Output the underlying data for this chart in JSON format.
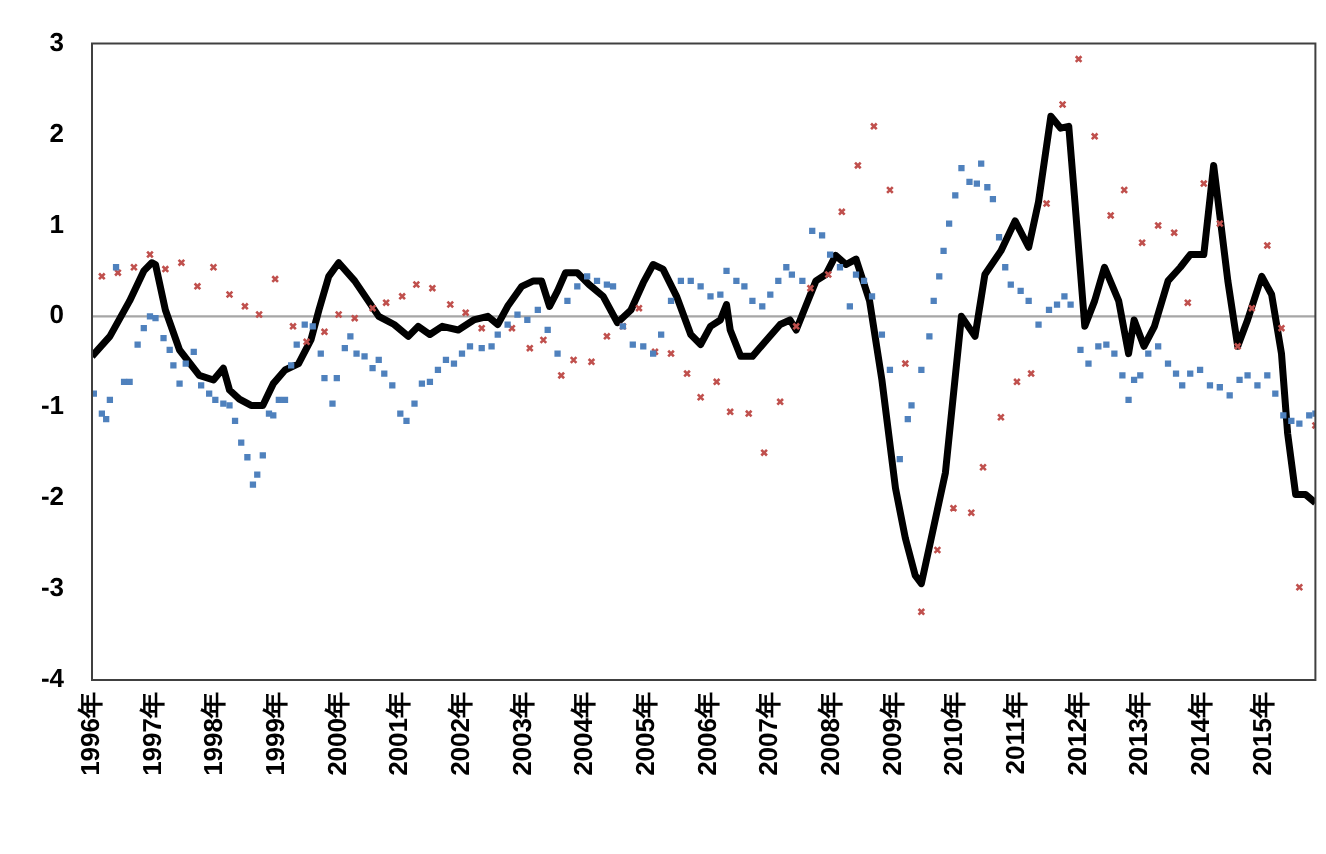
{
  "chart_data": {
    "type": "line",
    "xlim": [
      1996,
      2015.84
    ],
    "ylim": [
      -4,
      3
    ],
    "xticks": [
      {
        "value": 1996,
        "label": "1996年"
      },
      {
        "value": 1997,
        "label": "1997年"
      },
      {
        "value": 1998,
        "label": "1998年"
      },
      {
        "value": 1999,
        "label": "1999年"
      },
      {
        "value": 2000,
        "label": "2000年"
      },
      {
        "value": 2001,
        "label": "2001年"
      },
      {
        "value": 2002,
        "label": "2002年"
      },
      {
        "value": 2003,
        "label": "2003年"
      },
      {
        "value": 2004,
        "label": "2004年"
      },
      {
        "value": 2005,
        "label": "2005年"
      },
      {
        "value": 2006,
        "label": "2006年"
      },
      {
        "value": 2007,
        "label": "2007年"
      },
      {
        "value": 2008,
        "label": "2008年"
      },
      {
        "value": 2009,
        "label": "2009年"
      },
      {
        "value": 2010,
        "label": "2010年"
      },
      {
        "value": 2011,
        "label": "2011年"
      },
      {
        "value": 2012,
        "label": "2012年"
      },
      {
        "value": 2013,
        "label": "2013年"
      },
      {
        "value": 2014,
        "label": "2014年"
      },
      {
        "value": 2015,
        "label": "2015年"
      }
    ],
    "yticks": [
      -4,
      -3,
      -2,
      -1,
      0,
      1,
      2,
      3
    ],
    "grid": false,
    "legend": false,
    "ref_lines": [
      {
        "axis": "y",
        "value": 0,
        "color": "#a6a6a6"
      }
    ],
    "series": [
      {
        "type": "scatter",
        "marker": "square",
        "color": "#4f81bd",
        "x": [
          1996.03,
          1996.16,
          1996.23,
          1996.29,
          1996.39,
          1996.52,
          1996.61,
          1996.74,
          1996.84,
          1996.94,
          1997.03,
          1997.16,
          1997.26,
          1997.32,
          1997.42,
          1997.52,
          1997.65,
          1997.77,
          1997.9,
          1998,
          1998.13,
          1998.23,
          1998.32,
          1998.42,
          1998.52,
          1998.61,
          1998.68,
          1998.77,
          1998.87,
          1998.94,
          1999.03,
          1999.13,
          1999.23,
          1999.32,
          1999.45,
          1999.58,
          1999.71,
          1999.77,
          1999.9,
          1999.97,
          2000.1,
          2000.19,
          2000.29,
          2000.42,
          2000.55,
          2000.65,
          2000.74,
          2000.87,
          2001,
          2001.1,
          2001.23,
          2001.35,
          2001.48,
          2001.61,
          2001.74,
          2001.87,
          2002,
          2002.13,
          2002.32,
          2002.48,
          2002.58,
          2002.74,
          2002.9,
          2003.06,
          2003.23,
          2003.39,
          2003.55,
          2003.71,
          2003.87,
          2004.03,
          2004.19,
          2004.35,
          2004.45,
          2004.61,
          2004.77,
          2004.94,
          2005.1,
          2005.23,
          2005.39,
          2005.55,
          2005.71,
          2005.87,
          2006.03,
          2006.19,
          2006.29,
          2006.45,
          2006.58,
          2006.71,
          2006.87,
          2007,
          2007.13,
          2007.26,
          2007.35,
          2007.52,
          2007.68,
          2007.84,
          2007.97,
          2008.13,
          2008.29,
          2008.39,
          2008.52,
          2008.65,
          2008.81,
          2008.94,
          2009.1,
          2009.23,
          2009.29,
          2009.45,
          2009.58,
          2009.65,
          2009.74,
          2009.81,
          2009.9,
          2010,
          2010.1,
          2010.23,
          2010.35,
          2010.42,
          2010.52,
          2010.61,
          2010.71,
          2010.81,
          2010.9,
          2011.06,
          2011.19,
          2011.35,
          2011.52,
          2011.65,
          2011.77,
          2011.87,
          2012.03,
          2012.16,
          2012.32,
          2012.45,
          2012.58,
          2012.71,
          2012.81,
          2012.9,
          2013,
          2013.13,
          2013.29,
          2013.45,
          2013.58,
          2013.68,
          2013.81,
          2013.97,
          2014.13,
          2014.29,
          2014.45,
          2014.61,
          2014.74,
          2014.9,
          2015.06,
          2015.19,
          2015.32,
          2015.45,
          2015.58,
          2015.74,
          2015.84
        ],
        "values": [
          -0.85,
          -1.07,
          -1.13,
          -0.92,
          0.54,
          -0.72,
          -0.72,
          -0.31,
          -0.13,
          0,
          -0.02,
          -0.24,
          -0.37,
          -0.54,
          -0.74,
          -0.52,
          -0.39,
          -0.76,
          -0.85,
          -0.92,
          -0.96,
          -0.98,
          -1.15,
          -1.39,
          -1.55,
          -1.85,
          -1.74,
          -1.53,
          -1.07,
          -1.09,
          -0.92,
          -0.92,
          -0.54,
          -0.31,
          -0.09,
          -0.11,
          -0.41,
          -0.68,
          -0.96,
          -0.68,
          -0.35,
          -0.22,
          -0.41,
          -0.44,
          -0.57,
          -0.48,
          -0.63,
          -0.76,
          -1.07,
          -1.15,
          -0.96,
          -0.74,
          -0.72,
          -0.59,
          -0.48,
          -0.52,
          -0.41,
          -0.33,
          -0.35,
          -0.33,
          -0.2,
          -0.09,
          0.02,
          -0.04,
          0.07,
          -0.15,
          -0.41,
          0.17,
          0.33,
          0.44,
          0.39,
          0.35,
          0.33,
          -0.11,
          -0.31,
          -0.33,
          -0.41,
          -0.2,
          0.17,
          0.39,
          0.39,
          0.33,
          0.22,
          0.24,
          0.5,
          0.39,
          0.33,
          0.17,
          0.11,
          0.24,
          0.39,
          0.54,
          0.46,
          0.39,
          0.94,
          0.89,
          0.68,
          0.54,
          0.11,
          0.46,
          0.39,
          0.22,
          -0.2,
          -0.59,
          -1.57,
          -1.13,
          -0.98,
          -0.59,
          -0.22,
          0.17,
          0.44,
          0.72,
          1.02,
          1.33,
          1.63,
          1.48,
          1.46,
          1.68,
          1.42,
          1.29,
          0.87,
          0.54,
          0.35,
          0.28,
          0.17,
          -0.09,
          0.07,
          0.13,
          0.22,
          0.13,
          -0.37,
          -0.52,
          -0.33,
          -0.31,
          -0.41,
          -0.65,
          -0.92,
          -0.7,
          -0.65,
          -0.41,
          -0.33,
          -0.52,
          -0.63,
          -0.76,
          -0.63,
          -0.59,
          -0.76,
          -0.78,
          -0.87,
          -0.7,
          -0.65,
          -0.76,
          -0.65,
          -0.85,
          -1.09,
          -1.15,
          -1.18,
          -1.09,
          -1.07
        ]
      },
      {
        "type": "scatter",
        "marker": "cross",
        "color": "#c0504d",
        "x": [
          1996.16,
          1996.42,
          1996.68,
          1996.94,
          1997.19,
          1997.45,
          1997.71,
          1997.97,
          1998.23,
          1998.48,
          1998.71,
          1998.97,
          1999.26,
          1999.48,
          1999.77,
          2000,
          2000.26,
          2000.55,
          2000.77,
          2001.03,
          2001.26,
          2001.52,
          2001.81,
          2002.06,
          2002.32,
          2002.81,
          2003.1,
          2003.32,
          2003.61,
          2003.81,
          2004.1,
          2004.35,
          2004.61,
          2004.87,
          2005.13,
          2005.39,
          2005.65,
          2005.87,
          2006.13,
          2006.35,
          2006.65,
          2006.9,
          2007.16,
          2007.42,
          2007.65,
          2007.94,
          2008.16,
          2008.42,
          2008.68,
          2008.94,
          2009.19,
          2009.45,
          2009.71,
          2009.97,
          2010.26,
          2010.45,
          2010.74,
          2011,
          2011.23,
          2011.48,
          2011.74,
          2012,
          2012.26,
          2012.52,
          2012.74,
          2013.03,
          2013.29,
          2013.55,
          2013.77,
          2014.03,
          2014.29,
          2014.58,
          2014.81,
          2015.06,
          2015.29,
          2015.58,
          2015.84
        ],
        "values": [
          0.44,
          0.48,
          0.54,
          0.68,
          0.52,
          0.59,
          0.33,
          0.54,
          0.24,
          0.11,
          0.02,
          0.41,
          -0.11,
          -0.28,
          -0.17,
          0.02,
          -0.02,
          0.09,
          0.15,
          0.22,
          0.35,
          0.31,
          0.13,
          0.04,
          -0.13,
          -0.13,
          -0.35,
          -0.26,
          -0.65,
          -0.48,
          -0.5,
          -0.22,
          -0.11,
          0.09,
          -0.39,
          -0.41,
          -0.63,
          -0.89,
          -0.72,
          -1.05,
          -1.07,
          -1.5,
          -0.94,
          -0.11,
          0.31,
          0.46,
          1.15,
          1.66,
          2.09,
          1.39,
          -0.52,
          -3.25,
          -2.57,
          -2.11,
          -2.16,
          -1.66,
          -1.11,
          -0.72,
          -0.63,
          1.24,
          2.33,
          2.83,
          1.98,
          1.11,
          1.39,
          0.81,
          1,
          0.92,
          0.15,
          1.46,
          1.02,
          -0.33,
          0.09,
          0.78,
          -0.13,
          -2.98,
          -1.2
        ]
      },
      {
        "type": "line",
        "marker": "none",
        "line_style": "solid",
        "color": "#000000",
        "x": [
          1996,
          1996.29,
          1996.61,
          1996.84,
          1996.97,
          1997.03,
          1997.19,
          1997.42,
          1997.74,
          1997.97,
          1998.13,
          1998.23,
          1998.39,
          1998.58,
          1998.77,
          1998.94,
          1999.13,
          1999.35,
          1999.55,
          1999.68,
          1999.84,
          2000,
          2000.26,
          2000.48,
          2000.65,
          2000.9,
          2001.13,
          2001.29,
          2001.48,
          2001.68,
          2001.94,
          2002.19,
          2002.42,
          2002.58,
          2002.74,
          2002.97,
          2003.16,
          2003.29,
          2003.42,
          2003.55,
          2003.68,
          2003.87,
          2004.06,
          2004.29,
          2004.52,
          2004.74,
          2004.94,
          2005.1,
          2005.26,
          2005.48,
          2005.71,
          2005.87,
          2006.03,
          2006.19,
          2006.29,
          2006.35,
          2006.52,
          2006.71,
          2006.94,
          2007.16,
          2007.32,
          2007.42,
          2007.55,
          2007.74,
          2007.9,
          2008.06,
          2008.23,
          2008.39,
          2008.61,
          2008.81,
          2009.03,
          2009.19,
          2009.35,
          2009.45,
          2009.61,
          2009.84,
          2010.1,
          2010.32,
          2010.48,
          2010.74,
          2010.97,
          2011.19,
          2011.35,
          2011.55,
          2011.71,
          2011.84,
          2011.94,
          2012.1,
          2012.26,
          2012.42,
          2012.65,
          2012.81,
          2012.9,
          2013.06,
          2013.23,
          2013.45,
          2013.65,
          2013.81,
          2014.03,
          2014.19,
          2014.29,
          2014.42,
          2014.58,
          2014.74,
          2014.97,
          2015.13,
          2015.29,
          2015.39,
          2015.52,
          2015.68,
          2015.84
        ],
        "values": [
          -0.44,
          -0.22,
          0.17,
          0.5,
          0.59,
          0.57,
          0.07,
          -0.37,
          -0.65,
          -0.7,
          -0.57,
          -0.81,
          -0.91,
          -0.98,
          -0.98,
          -0.74,
          -0.59,
          -0.52,
          -0.26,
          0.07,
          0.44,
          0.59,
          0.39,
          0.17,
          0,
          -0.09,
          -0.22,
          -0.11,
          -0.2,
          -0.11,
          -0.15,
          -0.04,
          0,
          -0.09,
          0.11,
          0.33,
          0.39,
          0.39,
          0.11,
          0.28,
          0.48,
          0.48,
          0.35,
          0.22,
          -0.07,
          0.07,
          0.37,
          0.57,
          0.52,
          0.22,
          -0.2,
          -0.31,
          -0.11,
          -0.04,
          0.13,
          -0.15,
          -0.44,
          -0.44,
          -0.26,
          -0.09,
          -0.04,
          -0.15,
          0.07,
          0.39,
          0.46,
          0.67,
          0.57,
          0.63,
          0.17,
          -0.7,
          -1.89,
          -2.44,
          -2.85,
          -2.94,
          -2.44,
          -1.72,
          0,
          -0.22,
          0.46,
          0.72,
          1.05,
          0.76,
          1.26,
          2.2,
          2.07,
          2.09,
          1.26,
          -0.11,
          0.17,
          0.54,
          0.17,
          -0.41,
          -0.04,
          -0.33,
          -0.11,
          0.39,
          0.54,
          0.68,
          0.68,
          1.66,
          1.11,
          0.39,
          -0.33,
          -0.04,
          0.44,
          0.24,
          -0.41,
          -1.29,
          -1.96,
          -1.96,
          -2.05
        ]
      }
    ]
  }
}
